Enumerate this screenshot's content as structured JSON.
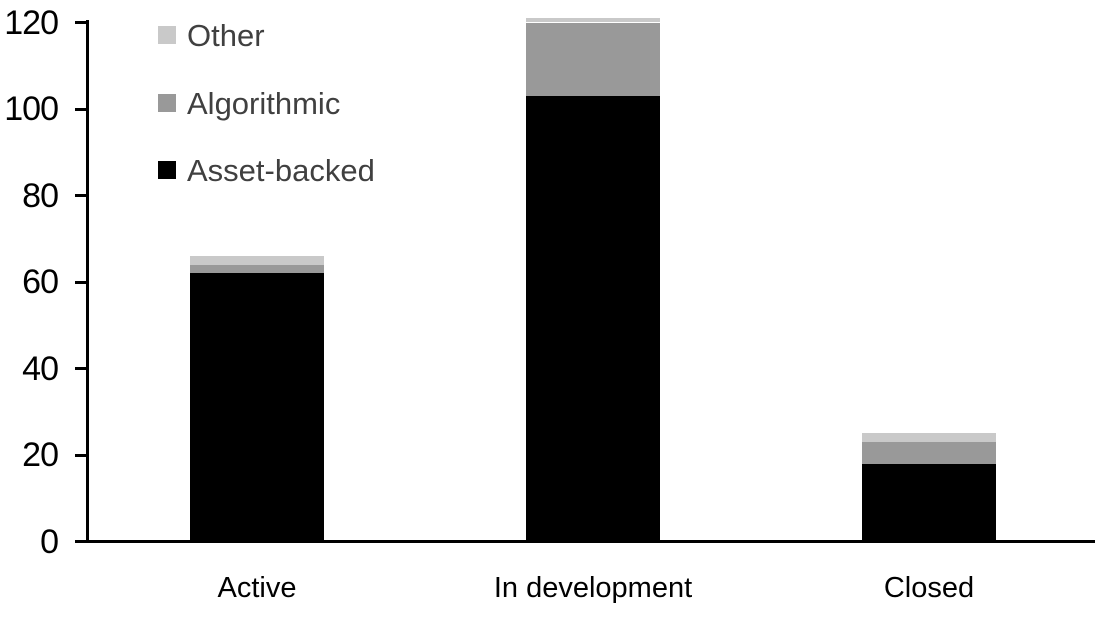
{
  "chart_data": {
    "type": "bar",
    "stacked": true,
    "title": "",
    "xlabel": "",
    "ylabel": "",
    "categories": [
      "Active",
      "In development",
      "Closed"
    ],
    "series": [
      {
        "name": "Asset-backed",
        "color": "#000000",
        "values": [
          62,
          103,
          18
        ]
      },
      {
        "name": "Algorithmic",
        "color": "#999999",
        "values": [
          2,
          17,
          5
        ]
      },
      {
        "name": "Other",
        "color": "#c9c9c9",
        "values": [
          2,
          1,
          2
        ]
      }
    ],
    "stack_totals": [
      66,
      121,
      25
    ],
    "y_ticks": [
      0,
      20,
      40,
      60,
      80,
      100,
      120
    ],
    "ylim": [
      0,
      120
    ],
    "grid": false,
    "legend": {
      "position": "top-left",
      "entries_top_to_bottom": [
        "Other",
        "Algorithmic",
        "Asset-backed"
      ]
    }
  },
  "colors": {
    "background": "#ffffff",
    "axis": "#000000",
    "tick_label": "#000000",
    "legend_text": "#404040"
  }
}
